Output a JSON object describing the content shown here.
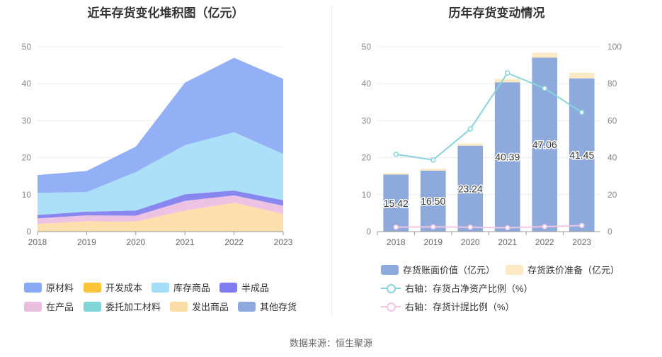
{
  "left_chart": {
    "title": "近年存货变化堆积图（亿元）",
    "legend": [
      {
        "name": "原材料",
        "color": "#8aa9f5"
      },
      {
        "name": "开发成本",
        "color": "#fbc53a"
      },
      {
        "name": "库存商品",
        "color": "#a5dcf7"
      },
      {
        "name": "半成品",
        "color": "#7e7cee"
      },
      {
        "name": "在产品",
        "color": "#eabedf"
      },
      {
        "name": "委托加工材料",
        "color": "#7fd5d5"
      },
      {
        "name": "发出商品",
        "color": "#fcdca5"
      },
      {
        "name": "其他存货",
        "color": "#8eaadc"
      }
    ]
  },
  "right_chart": {
    "title": "历年存货变动情况",
    "legend": [
      {
        "name": "存货账面价值（亿元）",
        "kind": "bar",
        "color": "#8eaadc"
      },
      {
        "name": "存货跌价准备（亿元）",
        "kind": "bar",
        "color": "#fde9c4"
      },
      {
        "name": "右轴：存货占净资产比例（%）",
        "kind": "line",
        "color": "#89d3db"
      },
      {
        "name": "右轴：存货计提比例（%）",
        "kind": "line",
        "color": "#f1c6e3"
      }
    ]
  },
  "chart_data": [
    {
      "type": "area",
      "title": "近年存货变化堆积图（亿元）",
      "x": [
        "2018",
        "2019",
        "2020",
        "2021",
        "2022",
        "2023"
      ],
      "ylim": [
        0,
        50
      ],
      "yticks": [
        0,
        10,
        20,
        30,
        40,
        50
      ],
      "stacked": true,
      "series": [
        {
          "name": "发出商品",
          "color": "#fcdca5",
          "values": [
            2.1,
            2.8,
            2.7,
            5.7,
            7.8,
            4.8
          ]
        },
        {
          "name": "在产品",
          "color": "#eabedf",
          "values": [
            1.5,
            1.6,
            1.6,
            2.6,
            2.0,
            2.2
          ]
        },
        {
          "name": "委托加工材料",
          "color": "#7fd5d5",
          "values": [
            0.0,
            0.0,
            0.0,
            0.0,
            0.0,
            0.0
          ]
        },
        {
          "name": "半成品",
          "color": "#7e7cee",
          "values": [
            0.9,
            1.0,
            1.4,
            1.8,
            1.3,
            1.5
          ]
        },
        {
          "name": "库存商品",
          "color": "#a5dcf7",
          "values": [
            6.0,
            5.3,
            10.4,
            13.3,
            15.8,
            12.5
          ]
        },
        {
          "name": "开发成本",
          "color": "#fbc53a",
          "values": [
            0.0,
            0.0,
            0.0,
            0.0,
            0.0,
            0.0
          ]
        },
        {
          "name": "原材料",
          "color": "#8aa9f5",
          "values": [
            4.8,
            5.7,
            6.9,
            16.9,
            20.1,
            20.3
          ]
        }
      ]
    },
    {
      "type": "bar",
      "title": "历年存货变动情况",
      "categories": [
        "2018",
        "2019",
        "2020",
        "2021",
        "2022",
        "2023"
      ],
      "ylim": [
        0,
        50
      ],
      "yticks": [
        0,
        10,
        20,
        30,
        40,
        50
      ],
      "y2lim": [
        0,
        100
      ],
      "y2ticks": [
        0,
        20,
        40,
        60,
        80,
        100
      ],
      "stacked": true,
      "series": [
        {
          "name": "存货账面价值（亿元）",
          "kind": "bar",
          "color": "#8eaadc",
          "values": [
            15.42,
            16.5,
            23.24,
            40.39,
            47.06,
            41.45
          ],
          "labels": [
            "15.42",
            "16.50",
            "23.24",
            "40.39",
            "47.06",
            "41.45"
          ]
        },
        {
          "name": "存货跌价准备（亿元）",
          "kind": "bar",
          "color": "#fde9c4",
          "values": [
            0.4,
            0.5,
            0.6,
            0.9,
            1.3,
            1.5
          ]
        },
        {
          "name": "右轴：存货占净资产比例（%）",
          "kind": "line",
          "axis": "right",
          "color": "#89d3db",
          "values": [
            41.8,
            38.8,
            55.5,
            85.8,
            77.5,
            64.5
          ]
        },
        {
          "name": "右轴：存货计提比例（%）",
          "kind": "line",
          "axis": "right",
          "color": "#f1c6e3",
          "values": [
            2.4,
            2.6,
            2.4,
            2.1,
            2.7,
            3.3
          ]
        }
      ]
    }
  ],
  "source": "数据来源：恒生聚源"
}
